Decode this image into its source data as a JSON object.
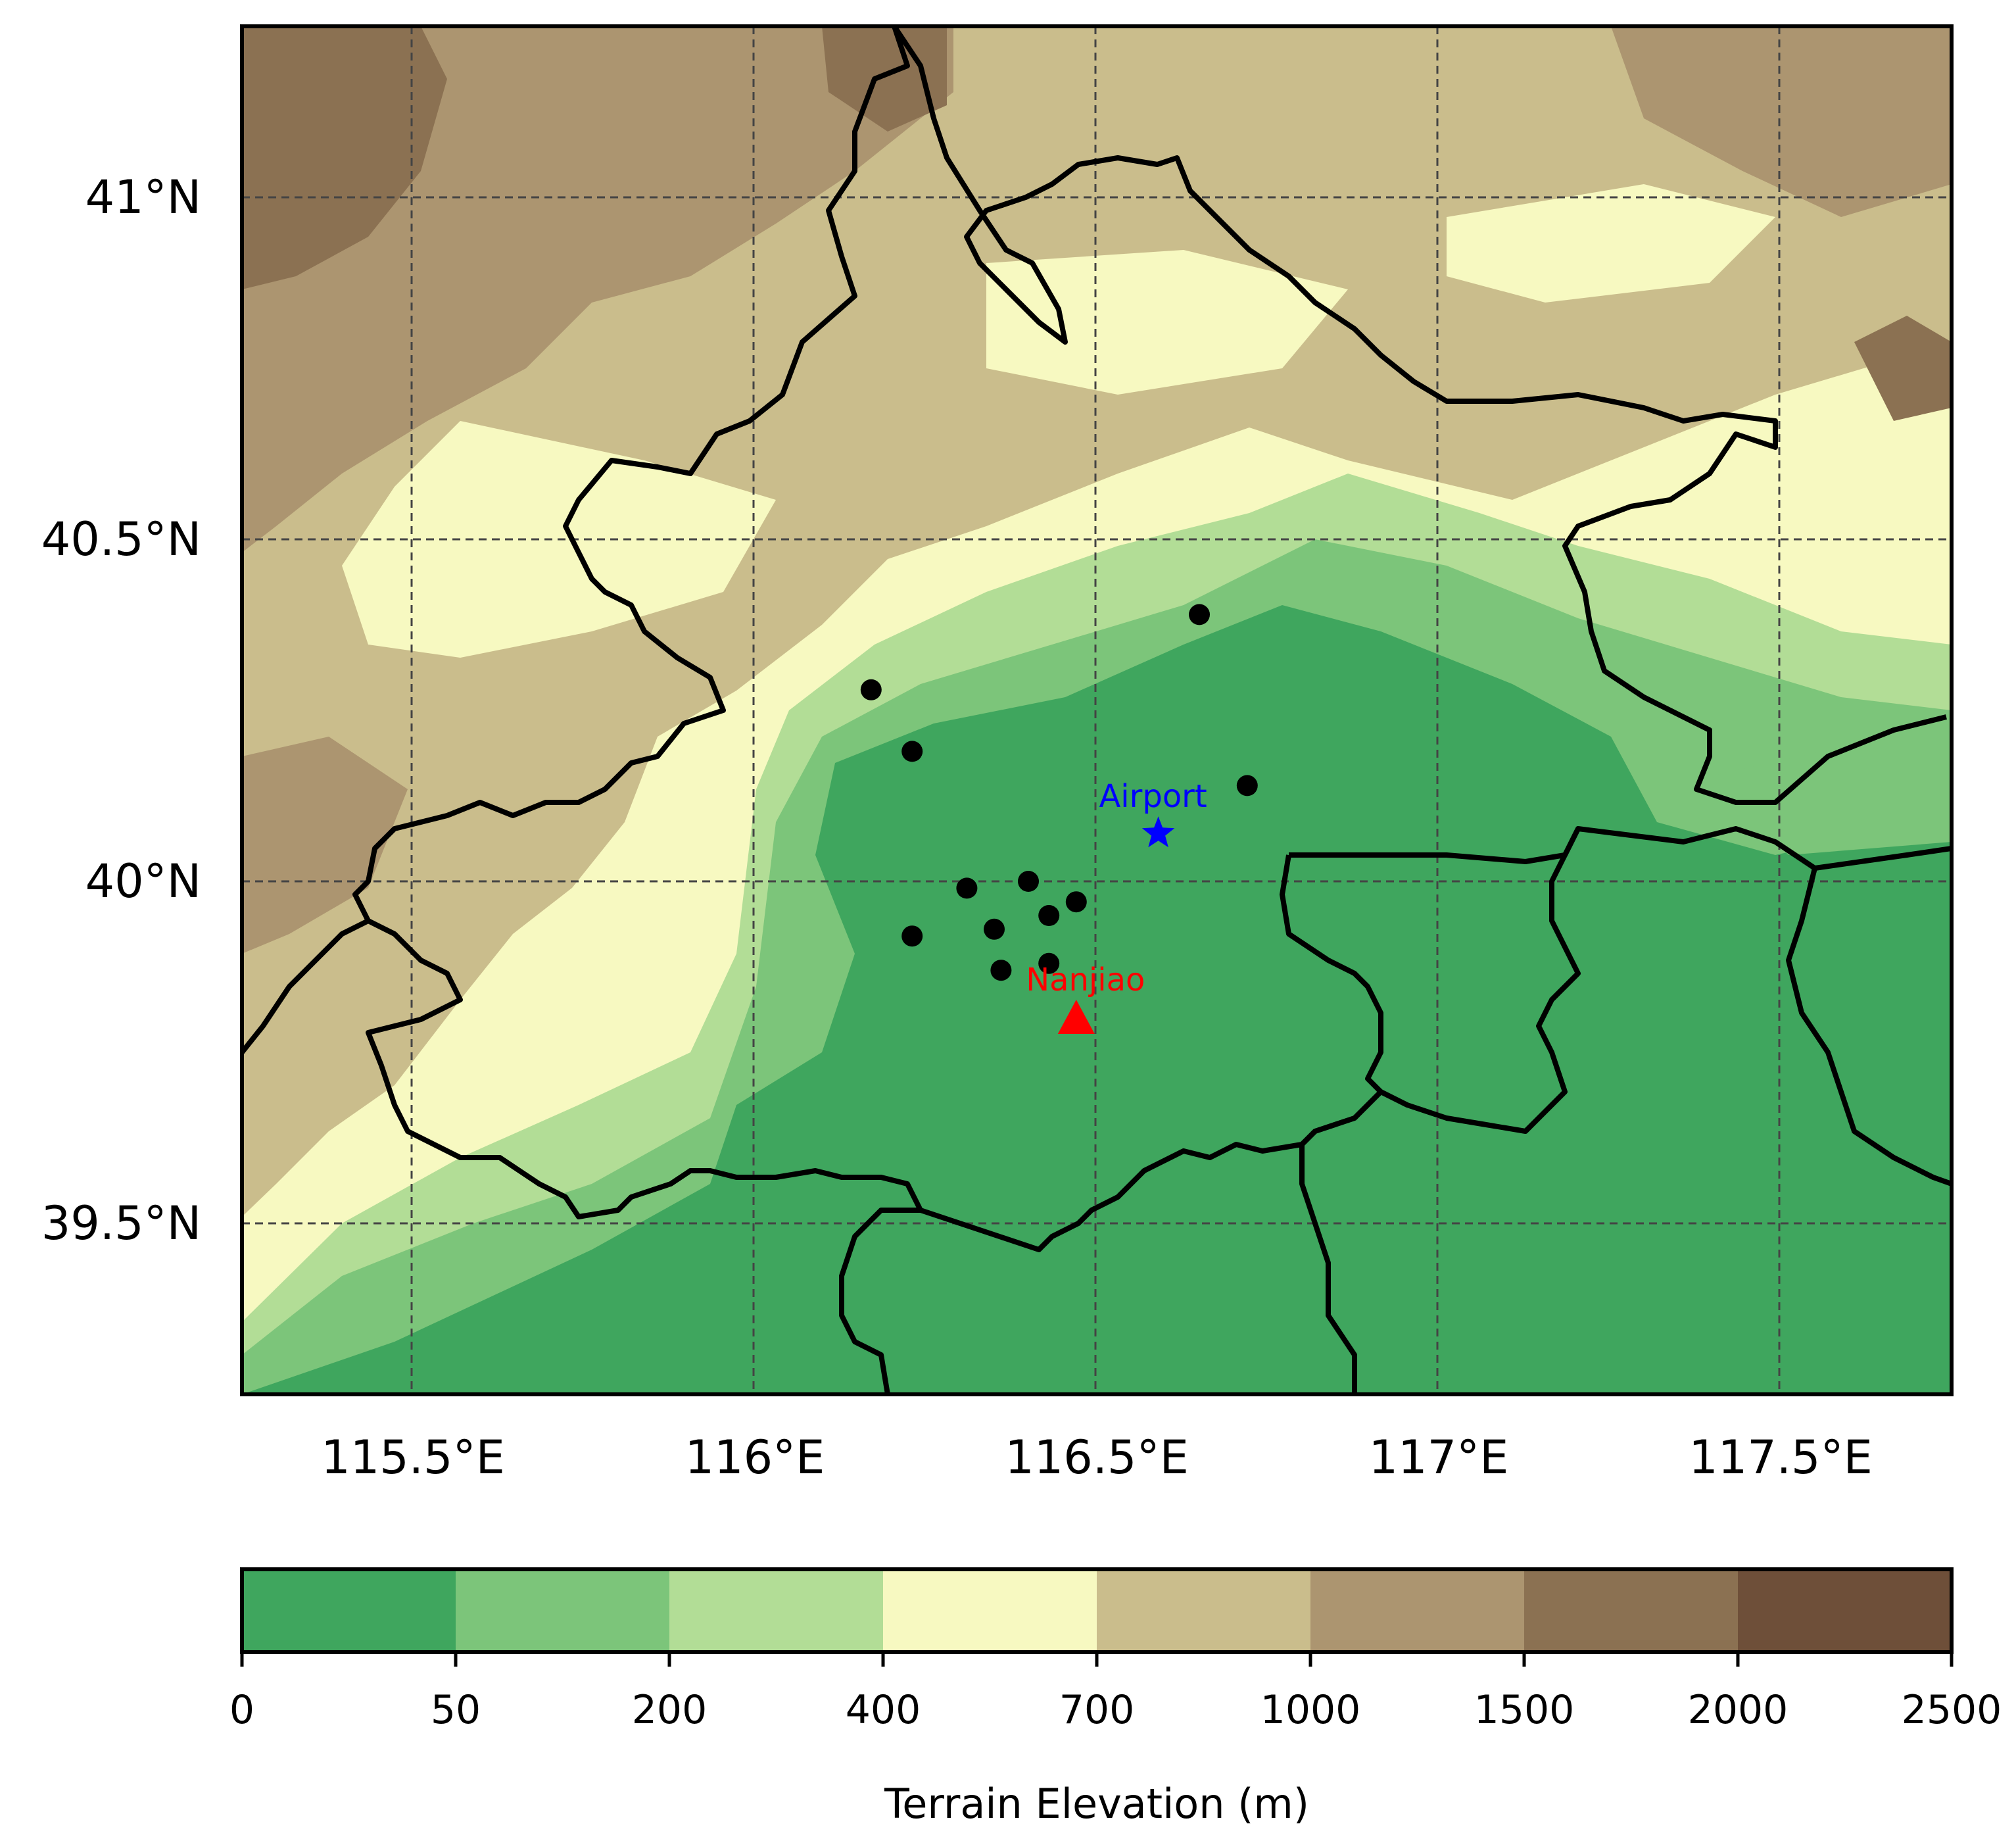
{
  "map": {
    "lon_range": [
      115.25,
      117.75
    ],
    "lat_range": [
      39.25,
      41.25
    ],
    "grid_lines": true,
    "lon_ticks": [
      {
        "value": 115.5,
        "label": "115.5°E"
      },
      {
        "value": 116.0,
        "label": "116°E"
      },
      {
        "value": 116.5,
        "label": "116.5°E"
      },
      {
        "value": 117.0,
        "label": "117°E"
      },
      {
        "value": 117.5,
        "label": "117.5°E"
      }
    ],
    "lat_ticks": [
      {
        "value": 41.0,
        "label": "41°N"
      },
      {
        "value": 40.5,
        "label": "40.5°N"
      },
      {
        "value": 40.0,
        "label": "40°N"
      },
      {
        "value": 39.5,
        "label": "39.5°N"
      }
    ],
    "stations": [
      {
        "lon": 116.17,
        "lat": 40.28
      },
      {
        "lon": 116.23,
        "lat": 40.19
      },
      {
        "lon": 116.65,
        "lat": 40.39
      },
      {
        "lon": 116.72,
        "lat": 40.14
      },
      {
        "lon": 116.31,
        "lat": 39.99
      },
      {
        "lon": 116.4,
        "lat": 40.0
      },
      {
        "lon": 116.47,
        "lat": 39.97
      },
      {
        "lon": 116.35,
        "lat": 39.93
      },
      {
        "lon": 116.43,
        "lat": 39.95
      },
      {
        "lon": 116.23,
        "lat": 39.92
      },
      {
        "lon": 116.36,
        "lat": 39.87
      },
      {
        "lon": 116.43,
        "lat": 39.88
      }
    ],
    "airport": {
      "label": "Airport",
      "lon": 116.59,
      "lat": 40.07,
      "color": "#0000ff"
    },
    "nanjiao": {
      "label": "Nanjiao",
      "lon": 116.47,
      "lat": 39.8,
      "color": "#ff0000"
    }
  },
  "colorbar": {
    "title": "Terrain Elevation (m)",
    "levels": [
      "0",
      "50",
      "200",
      "400",
      "700",
      "1000",
      "1500",
      "2000",
      "2500"
    ],
    "colors": [
      "#3fa65e",
      "#7cc57a",
      "#b2dd96",
      "#f7f9c1",
      "#cabd8c",
      "#ac9570",
      "#8b7152",
      "#6e4f39"
    ]
  }
}
